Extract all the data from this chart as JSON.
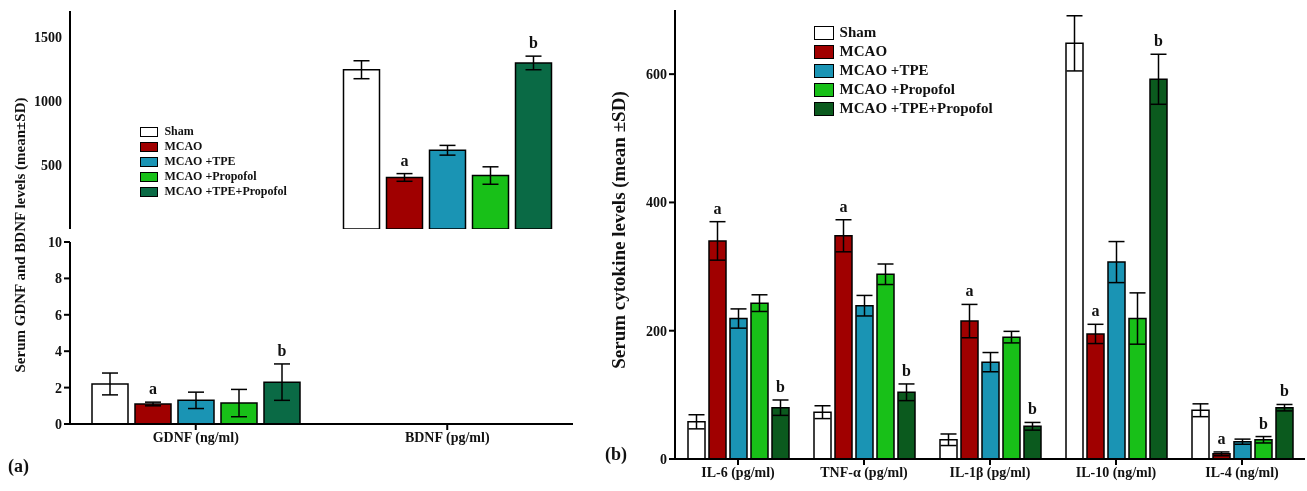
{
  "chart_data": [
    {
      "type": "bar",
      "ylabel": "Serum GDNF and BDNF levels (mean±SD)",
      "categories": [
        null
      ],
      "ylim": [
        0,
        1700
      ],
      "yticks": [
        500,
        1000,
        1500
      ],
      "tick_labels": "y",
      "legend": "left",
      "series": [
        {
          "name": "Sham",
          "color": "#ffffff",
          "values": [
            1242
          ],
          "errors": [
            70
          ]
        },
        {
          "name": "MCAO",
          "color": "#a00000",
          "values": [
            402
          ],
          "errors": [
            30
          ],
          "value_labels": [
            "a"
          ]
        },
        {
          "name": "MCAO +TPE",
          "color": "#1a94b4",
          "values": [
            614
          ],
          "errors": [
            38
          ]
        },
        {
          "name": "MCAO +Propofol",
          "color": "#18c018",
          "values": [
            417
          ],
          "errors": [
            68
          ]
        },
        {
          "name": "MCAO +TPE+Propofol",
          "color": "#0a6a45",
          "values": [
            1295
          ],
          "errors": [
            53
          ],
          "value_labels": [
            "b"
          ]
        }
      ]
    },
    {
      "type": "bar",
      "categories": [
        "GDNF (ng/ml)",
        "BDNF (pg/ml)"
      ],
      "ylim": [
        0,
        10
      ],
      "yticks": [
        0,
        2,
        4,
        6,
        8,
        10
      ],
      "annotations": [
        "(a)"
      ],
      "series": [
        {
          "color": "#ffffff",
          "values": [
            2.2,
            null
          ],
          "errors": [
            0.6,
            null
          ]
        },
        {
          "color": "#a00000",
          "values": [
            1.1,
            null
          ],
          "errors": [
            0.1,
            null
          ],
          "value_labels": [
            "a",
            null
          ]
        },
        {
          "color": "#1a94b4",
          "values": [
            1.3,
            null
          ],
          "errors": [
            0.45,
            null
          ]
        },
        {
          "color": "#18c018",
          "values": [
            1.15,
            null
          ],
          "errors": [
            0.75,
            null
          ]
        },
        {
          "color": "#0a6a45",
          "values": [
            2.3,
            null
          ],
          "errors": [
            1.0,
            null
          ],
          "value_labels": [
            "b",
            null
          ]
        }
      ]
    },
    {
      "type": "bar",
      "ylabel": "Serum cytokine levels (mean ±SD)",
      "categories": [
        "IL-6 (pg/ml)",
        "TNF-α (pg/ml)",
        "IL-1β (pg/ml)",
        "IL-10 (ng/ml)",
        "IL-4 (ng/ml)"
      ],
      "ylim": [
        0,
        700
      ],
      "yticks": [
        0,
        200,
        400,
        600
      ],
      "legend": "top left",
      "annotations": [
        "(b)"
      ],
      "series": [
        {
          "name": "Sham",
          "color": "#ffffff",
          "values": [
            58,
            73,
            30,
            648,
            76
          ],
          "errors": [
            11,
            10,
            9,
            43,
            10
          ]
        },
        {
          "name": "MCAO",
          "color": "#a00000",
          "values": [
            340,
            348,
            215,
            195,
            8
          ],
          "errors": [
            30,
            25,
            26,
            15,
            3
          ],
          "value_labels": [
            "a",
            "a",
            "a",
            "a",
            "a"
          ]
        },
        {
          "name": "MCAO +TPE",
          "color": "#1a94b4",
          "values": [
            219,
            239,
            151,
            307,
            27
          ],
          "errors": [
            15,
            16,
            15,
            32,
            4
          ]
        },
        {
          "name": "MCAO +Propofol",
          "color": "#18c018",
          "values": [
            243,
            288,
            190,
            219,
            30
          ],
          "errors": [
            13,
            16,
            9,
            40,
            5
          ],
          "value_labels": [
            null,
            null,
            null,
            null,
            "b"
          ]
        },
        {
          "name": "MCAO +TPE+Propofol",
          "color": "#0b5a1e",
          "values": [
            80,
            104,
            51,
            592,
            80
          ],
          "errors": [
            12,
            13,
            6,
            39,
            5
          ],
          "value_labels": [
            "b",
            "b",
            "b",
            "b",
            "b"
          ]
        }
      ]
    }
  ]
}
